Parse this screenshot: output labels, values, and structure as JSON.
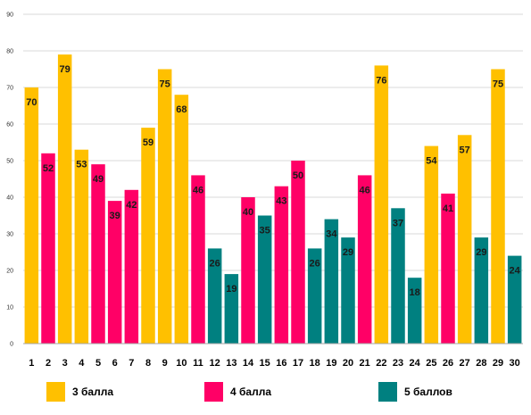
{
  "chart_data": {
    "type": "bar",
    "categories": [
      "1",
      "2",
      "3",
      "4",
      "5",
      "6",
      "7",
      "8",
      "9",
      "10",
      "11",
      "12",
      "13",
      "14",
      "15",
      "16",
      "17",
      "18",
      "19",
      "20",
      "21",
      "22",
      "23",
      "24",
      "25",
      "26",
      "27",
      "28",
      "29",
      "30"
    ],
    "values": [
      70,
      52,
      79,
      53,
      49,
      39,
      42,
      59,
      75,
      68,
      46,
      26,
      19,
      40,
      35,
      43,
      50,
      26,
      34,
      29,
      46,
      76,
      37,
      18,
      54,
      41,
      57,
      29,
      75,
      24
    ],
    "groups": [
      0,
      1,
      0,
      0,
      1,
      1,
      1,
      0,
      0,
      0,
      1,
      2,
      2,
      1,
      2,
      1,
      1,
      2,
      2,
      2,
      1,
      0,
      2,
      2,
      0,
      1,
      0,
      2,
      0,
      2
    ],
    "series": [
      {
        "name": "3 балла",
        "color": "#FFC000"
      },
      {
        "name": "4 балла",
        "color": "#FF0066"
      },
      {
        "name": "5 баллов",
        "color": "#008080"
      }
    ],
    "ylim": [
      0,
      90
    ],
    "yticks": [
      0,
      10,
      20,
      30,
      40,
      50,
      60,
      70,
      80,
      90
    ],
    "grid": true,
    "legend_position": "bottom"
  }
}
